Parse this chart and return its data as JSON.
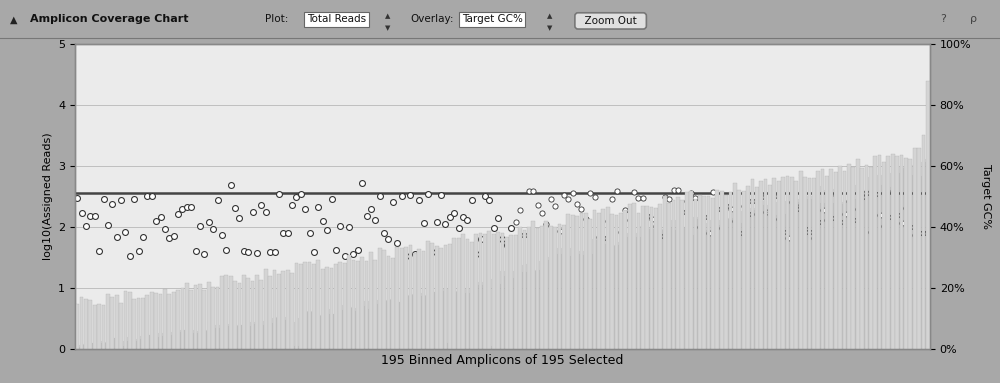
{
  "n_amplicons": 195,
  "xlabel": "195 Binned Amplicons of 195 Selected",
  "ylabel_left": "log10(Assigned Reads)",
  "ylabel_right": "Target GC%",
  "ylim_left": [
    0,
    5
  ],
  "ylim_right": [
    0,
    1
  ],
  "yticks_left": [
    0,
    1,
    2,
    3,
    4,
    5
  ],
  "yticks_right": [
    0.0,
    0.2,
    0.4,
    0.6,
    0.8,
    1.0
  ],
  "ytick_labels_right": [
    "0%",
    "20%",
    "40%",
    "60%",
    "80%",
    "100%"
  ],
  "hline_y": 2.55,
  "hline_color": "#444444",
  "plot_bg_color": "#ebebeb",
  "bar_color_light": "#c8c8c8",
  "bar_color_dark": "#555555",
  "gc_bar_color": "#d4d4d4",
  "scatter_facecolor": "#ffffff",
  "scatter_edgecolor": "#333333",
  "title_bar_bg": "#c0c0c0",
  "outer_bg": "#a8a8a8",
  "grid_color": "#bbbbbb",
  "border_color": "#888888"
}
